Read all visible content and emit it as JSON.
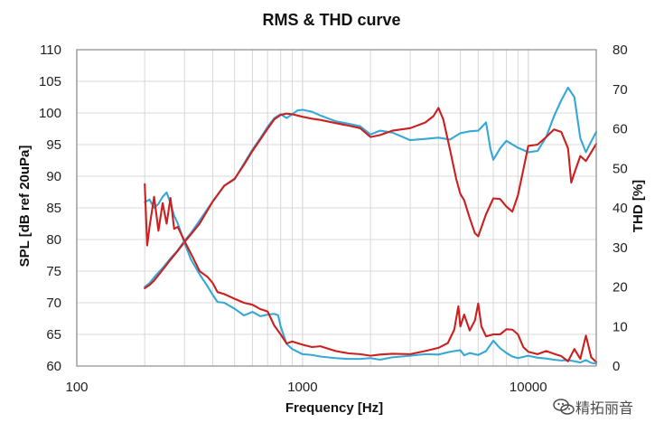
{
  "chart_data": {
    "type": "line",
    "title": "RMS & THD curve",
    "xlabel": "Frequency [Hz]",
    "ylabel_left": "SPL [dB ref 20uPa]",
    "ylabel_right": "THD [%]",
    "x_scale": "log",
    "xlim": [
      100,
      20000
    ],
    "ylim_left": [
      60,
      110
    ],
    "ylim_right": [
      0,
      80
    ],
    "grid": true,
    "legend": "none",
    "colors": {
      "red": "#cc1f1f",
      "blue": "#35a8d6",
      "grid": "#d8d8d8",
      "frame": "#8a8a8a",
      "watermark": "#4b4b4b"
    },
    "x_ticks": [
      {
        "value": 100,
        "label": "100"
      },
      {
        "value": 1000,
        "label": "1000"
      },
      {
        "value": 10000,
        "label": "10000"
      }
    ],
    "y_ticks_left": [
      {
        "value": 60,
        "label": "60"
      },
      {
        "value": 65,
        "label": "65"
      },
      {
        "value": 70,
        "label": "70"
      },
      {
        "value": 75,
        "label": "75"
      },
      {
        "value": 80,
        "label": "80"
      },
      {
        "value": 85,
        "label": "85"
      },
      {
        "value": 90,
        "label": "90"
      },
      {
        "value": 95,
        "label": "95"
      },
      {
        "value": 100,
        "label": "100"
      },
      {
        "value": 105,
        "label": "105"
      },
      {
        "value": 110,
        "label": "110"
      }
    ],
    "y_ticks_right": [
      {
        "value": 0,
        "label": "0"
      },
      {
        "value": 10,
        "label": "10"
      },
      {
        "value": 20,
        "label": "20"
      },
      {
        "value": 30,
        "label": "30"
      },
      {
        "value": 40,
        "label": "40"
      },
      {
        "value": 50,
        "label": "50"
      },
      {
        "value": 60,
        "label": "60"
      },
      {
        "value": 70,
        "label": "70"
      },
      {
        "value": 80,
        "label": "80"
      }
    ],
    "series": [
      {
        "color": "#35a8d6",
        "axis": "left",
        "points": [
          [
            200,
            72.5
          ],
          [
            210,
            73.1
          ],
          [
            220,
            74.0
          ],
          [
            240,
            75.5
          ],
          [
            260,
            77.0
          ],
          [
            280,
            78.3
          ],
          [
            300,
            79.8
          ],
          [
            320,
            81.0
          ],
          [
            350,
            83.0
          ],
          [
            400,
            86.0
          ],
          [
            450,
            88.5
          ],
          [
            500,
            89.5
          ],
          [
            550,
            92.0
          ],
          [
            600,
            94.2
          ],
          [
            650,
            96.0
          ],
          [
            700,
            97.8
          ],
          [
            750,
            99.2
          ],
          [
            800,
            99.8
          ],
          [
            850,
            99.2
          ],
          [
            900,
            99.8
          ],
          [
            950,
            100.4
          ],
          [
            1000,
            100.5
          ],
          [
            1100,
            100.2
          ],
          [
            1200,
            99.6
          ],
          [
            1400,
            98.7
          ],
          [
            1600,
            98.3
          ],
          [
            1800,
            97.9
          ],
          [
            2000,
            96.6
          ],
          [
            2200,
            97.2
          ],
          [
            2500,
            96.9
          ],
          [
            3000,
            95.7
          ],
          [
            3500,
            95.9
          ],
          [
            4000,
            96.1
          ],
          [
            4500,
            95.8
          ],
          [
            5000,
            96.8
          ],
          [
            5500,
            97.1
          ],
          [
            6000,
            97.2
          ],
          [
            6500,
            98.5
          ],
          [
            6800,
            94.3
          ],
          [
            7000,
            92.6
          ],
          [
            7500,
            94.4
          ],
          [
            8000,
            95.6
          ],
          [
            9000,
            94.5
          ],
          [
            10000,
            93.8
          ],
          [
            11000,
            94.0
          ],
          [
            12000,
            96.2
          ],
          [
            13000,
            99.5
          ],
          [
            14000,
            102.0
          ],
          [
            15000,
            104.0
          ],
          [
            16000,
            102.5
          ],
          [
            17000,
            96.0
          ],
          [
            18000,
            93.8
          ],
          [
            19000,
            95.5
          ],
          [
            20000,
            97.0
          ]
        ]
      },
      {
        "color": "#cc1f1f",
        "axis": "left",
        "points": [
          [
            200,
            72.3
          ],
          [
            210,
            72.8
          ],
          [
            220,
            73.5
          ],
          [
            240,
            75.2
          ],
          [
            260,
            76.8
          ],
          [
            280,
            78.2
          ],
          [
            300,
            79.6
          ],
          [
            320,
            80.8
          ],
          [
            350,
            82.5
          ],
          [
            400,
            86.0
          ],
          [
            450,
            88.5
          ],
          [
            500,
            89.6
          ],
          [
            550,
            91.8
          ],
          [
            600,
            94.0
          ],
          [
            650,
            95.8
          ],
          [
            700,
            97.5
          ],
          [
            750,
            99.0
          ],
          [
            800,
            99.7
          ],
          [
            850,
            99.9
          ],
          [
            900,
            99.8
          ],
          [
            950,
            99.6
          ],
          [
            1000,
            99.4
          ],
          [
            1100,
            99.1
          ],
          [
            1200,
            98.9
          ],
          [
            1400,
            98.4
          ],
          [
            1600,
            98.0
          ],
          [
            1800,
            97.6
          ],
          [
            2000,
            96.2
          ],
          [
            2200,
            96.5
          ],
          [
            2500,
            97.2
          ],
          [
            3000,
            97.6
          ],
          [
            3500,
            98.5
          ],
          [
            3800,
            99.5
          ],
          [
            4000,
            100.8
          ],
          [
            4200,
            99.0
          ],
          [
            4500,
            94.2
          ],
          [
            4800,
            89.5
          ],
          [
            5000,
            87.2
          ],
          [
            5200,
            86.2
          ],
          [
            5500,
            83.4
          ],
          [
            5800,
            81.0
          ],
          [
            6000,
            80.5
          ],
          [
            6500,
            84.0
          ],
          [
            7000,
            86.5
          ],
          [
            7500,
            86.4
          ],
          [
            8000,
            85.2
          ],
          [
            8500,
            84.4
          ],
          [
            9000,
            87.0
          ],
          [
            9500,
            91.0
          ],
          [
            10000,
            94.8
          ],
          [
            11000,
            95.0
          ],
          [
            12000,
            96.2
          ],
          [
            13000,
            97.4
          ],
          [
            14000,
            97.0
          ],
          [
            15000,
            94.4
          ],
          [
            15500,
            89.0
          ],
          [
            16000,
            90.5
          ],
          [
            17000,
            93.2
          ],
          [
            18000,
            92.4
          ],
          [
            19000,
            93.8
          ],
          [
            20000,
            95.1
          ]
        ]
      },
      {
        "color": "#35a8d6",
        "axis": "right",
        "points": [
          [
            200,
            41.4
          ],
          [
            210,
            42.1
          ],
          [
            220,
            40.0
          ],
          [
            230,
            41.0
          ],
          [
            240,
            42.8
          ],
          [
            250,
            43.9
          ],
          [
            260,
            41.2
          ],
          [
            270,
            38.0
          ],
          [
            280,
            36.1
          ],
          [
            300,
            31.2
          ],
          [
            320,
            27.0
          ],
          [
            350,
            23.2
          ],
          [
            380,
            20.1
          ],
          [
            400,
            18.0
          ],
          [
            420,
            16.2
          ],
          [
            450,
            16.0
          ],
          [
            500,
            14.5
          ],
          [
            550,
            12.8
          ],
          [
            600,
            13.7
          ],
          [
            650,
            12.6
          ],
          [
            700,
            13.0
          ],
          [
            750,
            13.2
          ],
          [
            780,
            12.8
          ],
          [
            800,
            10.0
          ],
          [
            850,
            5.6
          ],
          [
            900,
            4.3
          ],
          [
            1000,
            3.0
          ],
          [
            1100,
            2.8
          ],
          [
            1200,
            2.4
          ],
          [
            1400,
            2.0
          ],
          [
            1600,
            1.8
          ],
          [
            1800,
            1.8
          ],
          [
            2000,
            2.0
          ],
          [
            2200,
            1.6
          ],
          [
            2500,
            2.2
          ],
          [
            3000,
            2.6
          ],
          [
            3500,
            3.0
          ],
          [
            4000,
            2.9
          ],
          [
            4500,
            3.6
          ],
          [
            5000,
            4.0
          ],
          [
            5200,
            2.7
          ],
          [
            5500,
            3.3
          ],
          [
            6000,
            2.8
          ],
          [
            6500,
            3.8
          ],
          [
            7000,
            6.4
          ],
          [
            7500,
            4.5
          ],
          [
            8000,
            3.3
          ],
          [
            8500,
            2.4
          ],
          [
            9000,
            2.0
          ],
          [
            10000,
            2.6
          ],
          [
            11000,
            2.1
          ],
          [
            12000,
            1.9
          ],
          [
            13000,
            1.6
          ],
          [
            14000,
            1.4
          ],
          [
            15000,
            1.5
          ],
          [
            16000,
            1.2
          ],
          [
            17000,
            0.9
          ],
          [
            18000,
            1.5
          ],
          [
            19000,
            0.8
          ],
          [
            20000,
            0.6
          ]
        ]
      },
      {
        "color": "#cc1f1f",
        "axis": "right",
        "points": [
          [
            200,
            46.0
          ],
          [
            205,
            30.5
          ],
          [
            210,
            35.2
          ],
          [
            220,
            42.8
          ],
          [
            230,
            34.2
          ],
          [
            240,
            41.2
          ],
          [
            250,
            36.0
          ],
          [
            260,
            42.5
          ],
          [
            270,
            34.7
          ],
          [
            280,
            35.2
          ],
          [
            300,
            31.6
          ],
          [
            320,
            28.5
          ],
          [
            350,
            24.0
          ],
          [
            380,
            22.5
          ],
          [
            400,
            21.0
          ],
          [
            420,
            18.7
          ],
          [
            450,
            18.2
          ],
          [
            500,
            17.0
          ],
          [
            550,
            16.0
          ],
          [
            600,
            15.5
          ],
          [
            650,
            14.4
          ],
          [
            700,
            13.8
          ],
          [
            750,
            10.2
          ],
          [
            800,
            8.0
          ],
          [
            850,
            5.7
          ],
          [
            900,
            6.2
          ],
          [
            1000,
            5.4
          ],
          [
            1100,
            4.8
          ],
          [
            1200,
            5.0
          ],
          [
            1400,
            3.8
          ],
          [
            1600,
            3.2
          ],
          [
            1800,
            3.0
          ],
          [
            2000,
            2.6
          ],
          [
            2200,
            2.9
          ],
          [
            2500,
            3.1
          ],
          [
            3000,
            3.0
          ],
          [
            3500,
            3.8
          ],
          [
            4000,
            4.6
          ],
          [
            4400,
            5.8
          ],
          [
            4700,
            9.2
          ],
          [
            4900,
            15.1
          ],
          [
            5000,
            10.0
          ],
          [
            5200,
            13.0
          ],
          [
            5500,
            9.0
          ],
          [
            5800,
            11.5
          ],
          [
            6000,
            15.8
          ],
          [
            6200,
            10.0
          ],
          [
            6500,
            7.5
          ],
          [
            7000,
            8.0
          ],
          [
            7500,
            8.0
          ],
          [
            8000,
            9.3
          ],
          [
            8500,
            9.2
          ],
          [
            9000,
            8.0
          ],
          [
            9500,
            4.8
          ],
          [
            10000,
            3.6
          ],
          [
            11000,
            3.0
          ],
          [
            12000,
            3.8
          ],
          [
            13000,
            3.1
          ],
          [
            14000,
            2.5
          ],
          [
            15000,
            1.2
          ],
          [
            16000,
            4.3
          ],
          [
            17000,
            1.8
          ],
          [
            18000,
            7.7
          ],
          [
            19000,
            2.2
          ],
          [
            20000,
            1.0
          ]
        ]
      }
    ]
  },
  "watermark": {
    "icon": "wechat-icon",
    "text": "精拓丽音"
  }
}
